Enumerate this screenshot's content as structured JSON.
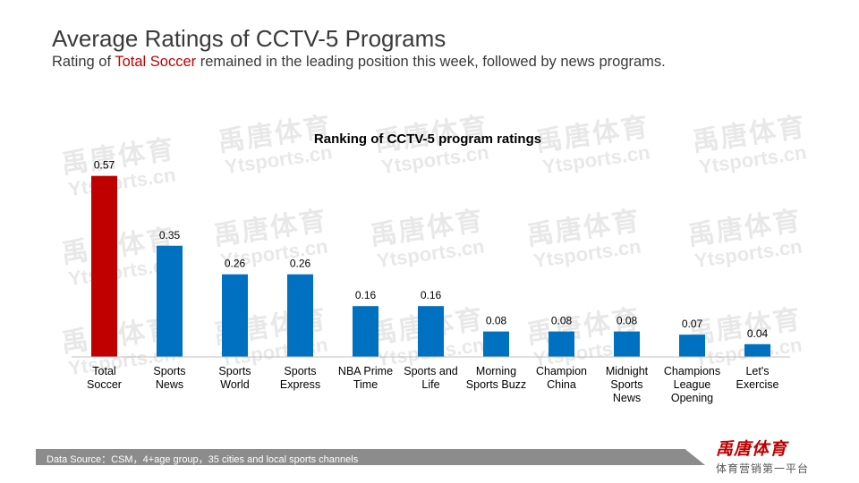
{
  "title": "Average Ratings of CCTV-5 Programs",
  "subtitle": {
    "before": "Rating of ",
    "highlight": "Total Soccer",
    "after": " remained in the leading position this week, followed by news programs."
  },
  "watermark": {
    "cn": "禹唐体育",
    "en": "Ytsports.cn"
  },
  "footer": {
    "source": "Data Source：CSM，4+age group，35 cities and local sports channels"
  },
  "brand": {
    "logo": "禹唐体育",
    "slogan": "体育营销第一平台"
  },
  "colors": {
    "highlight_bar": "#c00000",
    "bar": "#0070c0",
    "subtitle_highlight": "#c00000",
    "footer_bar": "#8c8c8c"
  },
  "chart_data": {
    "type": "bar",
    "title": "Ranking of CCTV-5 program ratings",
    "categories": [
      [
        "Total",
        "Soccer"
      ],
      [
        "Sports",
        "News"
      ],
      [
        "Sports",
        "World"
      ],
      [
        "Sports",
        "Express"
      ],
      [
        "NBA Prime",
        "Time"
      ],
      [
        "Sports and",
        "Life"
      ],
      [
        "Morning",
        "Sports Buzz"
      ],
      [
        "Champion",
        "China"
      ],
      [
        "Midnight",
        "Sports",
        "News"
      ],
      [
        "Champions",
        "League",
        "Opening"
      ],
      [
        "Let's",
        "Exercise"
      ]
    ],
    "values": [
      0.57,
      0.35,
      0.26,
      0.26,
      0.16,
      0.16,
      0.08,
      0.08,
      0.08,
      0.07,
      0.04
    ],
    "value_labels": [
      "0.57",
      "0.35",
      "0.26",
      "0.26",
      "0.16",
      "0.16",
      "0.08",
      "0.08",
      "0.08",
      "0.07",
      "0.04"
    ],
    "highlight_index": 0,
    "ylim": [
      0,
      0.6
    ],
    "grid": false,
    "legend": "none"
  }
}
